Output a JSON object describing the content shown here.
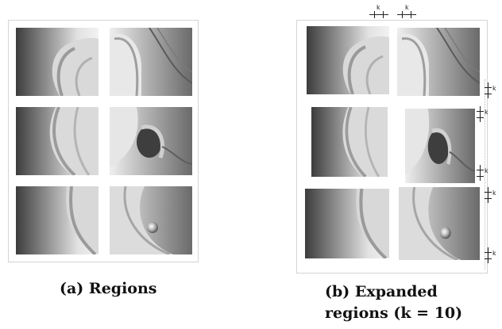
{
  "captions": {
    "a": "(a) Regions",
    "b_line1": "(b) Expanded",
    "b_line2": "regions (k = 10)"
  },
  "markers": {
    "k": "k"
  },
  "colors": {
    "skin_dark": "#3a3a3a",
    "skin_mid": "#8c8c8c",
    "skin_light": "#e6e6e6",
    "frame": "#d4d4d4"
  }
}
